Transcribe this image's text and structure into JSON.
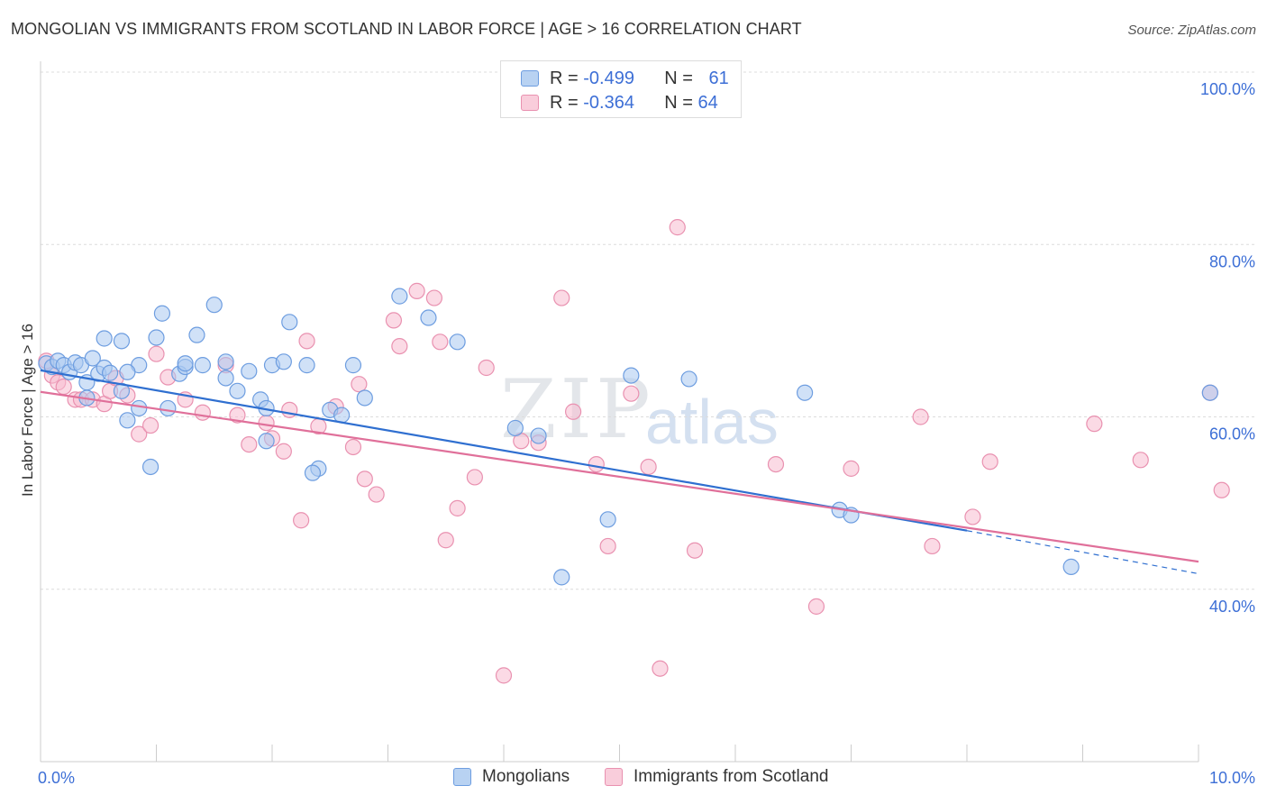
{
  "title": "MONGOLIAN VS IMMIGRANTS FROM SCOTLAND IN LABOR FORCE | AGE > 16 CORRELATION CHART",
  "source": "Source: ZipAtlas.com",
  "watermark": {
    "zip": "ZIP",
    "atlas": "atlas"
  },
  "legend": {
    "series1": {
      "r_label": "R =",
      "r_value": "-0.499",
      "n_label": "N =",
      "n_value": "61"
    },
    "series2": {
      "r_label": "R =",
      "r_value": "-0.364",
      "n_label": "N =",
      "n_value": "64"
    }
  },
  "bottom_legend": {
    "series1": "Mongolians",
    "series2": "Immigrants from Scotland"
  },
  "colors": {
    "blue_fill": "#a9c8f0",
    "blue_stroke": "#6d9de0",
    "blue_line": "#2f6fd0",
    "pink_fill": "#f7bcd0",
    "pink_stroke": "#e991b0",
    "pink_line": "#e0709a",
    "tick_label": "#3d6fd6",
    "grid": "#dcdcdc"
  },
  "chart_data": {
    "type": "scatter",
    "title": "MONGOLIAN VS IMMIGRANTS FROM SCOTLAND IN LABOR FORCE | AGE > 16 CORRELATION CHART",
    "xlabel": "",
    "ylabel": "In Labor Force | Age > 16",
    "xlim": [
      0,
      10
    ],
    "ylim": [
      20,
      100
    ],
    "x_tick_labels": [
      "0.0%",
      "10.0%"
    ],
    "y_ticks": [
      40,
      60,
      80,
      100
    ],
    "y_tick_labels": [
      "40.0%",
      "60.0%",
      "80.0%",
      "100.0%"
    ],
    "grid": true,
    "legend_position": "top-center",
    "series": [
      {
        "name": "Mongolians",
        "r": -0.499,
        "n": 61,
        "trend": {
          "x0": 0,
          "y0": 65.4,
          "x1": 8.0,
          "y1": 46.8,
          "dashed_to": 10.0,
          "dashed_y": 41.8
        },
        "points": [
          [
            0.05,
            66.2
          ],
          [
            0.1,
            65.8
          ],
          [
            0.15,
            66.5
          ],
          [
            0.2,
            66.0
          ],
          [
            0.25,
            65.2
          ],
          [
            0.3,
            66.3
          ],
          [
            0.35,
            66.0
          ],
          [
            0.4,
            64.0
          ],
          [
            0.45,
            66.8
          ],
          [
            0.5,
            65.0
          ],
          [
            0.55,
            65.7
          ],
          [
            0.4,
            62.2
          ],
          [
            0.6,
            65.1
          ],
          [
            0.7,
            63.0
          ],
          [
            0.55,
            69.1
          ],
          [
            0.7,
            68.8
          ],
          [
            0.75,
            59.6
          ],
          [
            0.85,
            61.0
          ],
          [
            0.85,
            66.0
          ],
          [
            0.75,
            65.2
          ],
          [
            0.95,
            54.2
          ],
          [
            1.05,
            72.0
          ],
          [
            1.0,
            69.2
          ],
          [
            1.1,
            61.0
          ],
          [
            1.2,
            65.0
          ],
          [
            1.25,
            65.8
          ],
          [
            1.25,
            66.2
          ],
          [
            1.35,
            69.5
          ],
          [
            1.4,
            66.0
          ],
          [
            1.5,
            73.0
          ],
          [
            1.6,
            64.5
          ],
          [
            1.6,
            66.4
          ],
          [
            1.7,
            63.0
          ],
          [
            1.8,
            65.3
          ],
          [
            1.9,
            62.0
          ],
          [
            1.95,
            61.0
          ],
          [
            2.0,
            66.0
          ],
          [
            2.1,
            66.4
          ],
          [
            2.15,
            71.0
          ],
          [
            2.3,
            66.0
          ],
          [
            2.4,
            54.0
          ],
          [
            2.35,
            53.5
          ],
          [
            2.5,
            60.8
          ],
          [
            2.6,
            60.2
          ],
          [
            2.7,
            66.0
          ],
          [
            2.8,
            62.2
          ],
          [
            1.95,
            57.2
          ],
          [
            3.1,
            74.0
          ],
          [
            3.35,
            71.5
          ],
          [
            3.6,
            68.7
          ],
          [
            4.1,
            58.7
          ],
          [
            4.3,
            57.8
          ],
          [
            4.5,
            41.4
          ],
          [
            4.9,
            48.1
          ],
          [
            5.1,
            64.8
          ],
          [
            5.6,
            64.4
          ],
          [
            6.6,
            62.8
          ],
          [
            6.9,
            49.2
          ],
          [
            7.0,
            48.6
          ],
          [
            8.9,
            42.6
          ],
          [
            10.1,
            62.8
          ]
        ]
      },
      {
        "name": "Immigrants from Scotland",
        "r": -0.364,
        "n": 64,
        "trend": {
          "x0": 0,
          "y0": 62.9,
          "x1": 10.0,
          "y1": 43.2
        },
        "points": [
          [
            0.05,
            66.5
          ],
          [
            0.1,
            64.8
          ],
          [
            0.15,
            64.0
          ],
          [
            0.2,
            63.5
          ],
          [
            0.3,
            62.0
          ],
          [
            0.35,
            62.0
          ],
          [
            0.45,
            62.0
          ],
          [
            0.55,
            61.5
          ],
          [
            0.6,
            63.0
          ],
          [
            0.65,
            64.5
          ],
          [
            0.75,
            62.5
          ],
          [
            0.85,
            58.0
          ],
          [
            0.95,
            59.0
          ],
          [
            1.0,
            67.3
          ],
          [
            1.1,
            64.6
          ],
          [
            1.25,
            62.0
          ],
          [
            1.4,
            60.5
          ],
          [
            1.6,
            66.0
          ],
          [
            1.7,
            60.2
          ],
          [
            1.8,
            56.8
          ],
          [
            1.95,
            59.3
          ],
          [
            2.0,
            57.5
          ],
          [
            2.15,
            60.8
          ],
          [
            2.1,
            56.0
          ],
          [
            2.25,
            48.0
          ],
          [
            2.3,
            68.8
          ],
          [
            2.4,
            58.9
          ],
          [
            2.55,
            61.2
          ],
          [
            2.7,
            56.5
          ],
          [
            2.75,
            63.8
          ],
          [
            2.8,
            52.8
          ],
          [
            2.9,
            51.0
          ],
          [
            3.05,
            71.2
          ],
          [
            3.1,
            68.2
          ],
          [
            3.25,
            74.6
          ],
          [
            3.4,
            73.8
          ],
          [
            3.45,
            68.7
          ],
          [
            3.5,
            45.7
          ],
          [
            3.6,
            49.4
          ],
          [
            3.75,
            53.0
          ],
          [
            3.85,
            65.7
          ],
          [
            4.0,
            30.0
          ],
          [
            4.15,
            57.2
          ],
          [
            4.3,
            57.0
          ],
          [
            4.5,
            73.8
          ],
          [
            4.6,
            60.6
          ],
          [
            4.8,
            54.5
          ],
          [
            4.9,
            45.0
          ],
          [
            5.1,
            62.7
          ],
          [
            5.25,
            54.2
          ],
          [
            5.35,
            30.8
          ],
          [
            5.5,
            82.0
          ],
          [
            5.65,
            44.5
          ],
          [
            6.35,
            54.5
          ],
          [
            6.7,
            38.0
          ],
          [
            7.0,
            54.0
          ],
          [
            7.6,
            60.0
          ],
          [
            7.7,
            45.0
          ],
          [
            8.05,
            48.4
          ],
          [
            8.2,
            54.8
          ],
          [
            9.1,
            59.2
          ],
          [
            10.1,
            62.8
          ],
          [
            10.2,
            51.5
          ],
          [
            9.5,
            55.0
          ]
        ]
      }
    ]
  }
}
